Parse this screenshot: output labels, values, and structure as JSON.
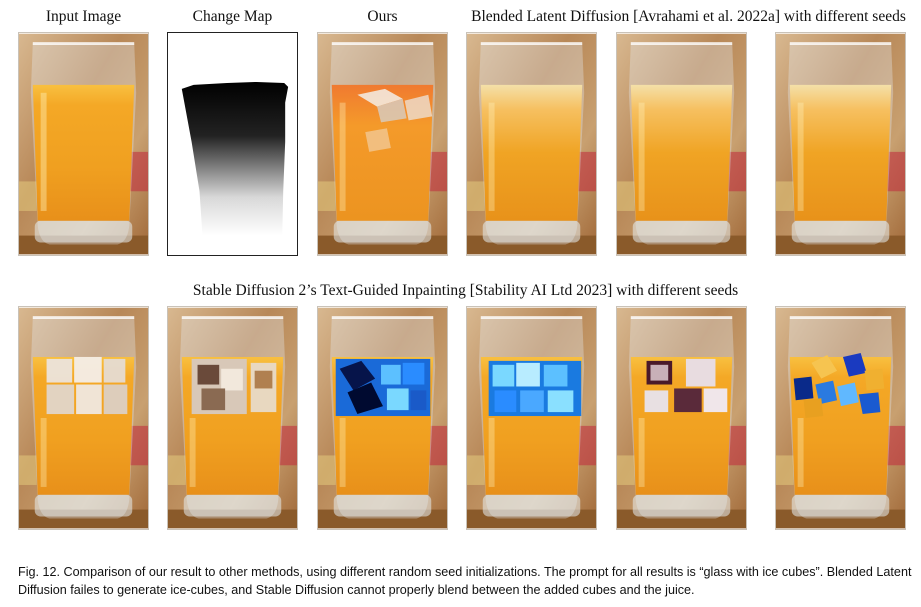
{
  "figure": {
    "row1_headers": {
      "input": "Input Image",
      "change_map": "Change Map",
      "ours": "Ours",
      "blended": "Blended Latent Diffusion [Avrahami et al. 2022a] with different seeds"
    },
    "row2_header": "Stable Diffusion 2’s Text-Guided Inpainting [Stability AI Ltd 2023] with different seeds",
    "caption": "Fig. 12.  Comparison of our result to other methods, using different random seed initializations. The prompt for all results is “glass with ice cubes”. Blended Latent Diffusion failes to generate ice-cubes, and Stable Diffusion cannot properly blend between the added cubes and the juice."
  },
  "colors": {
    "juice": "#f0a020",
    "juice_top": "#f8c040",
    "background_wood": "#b07840",
    "ice_clear": "#f2ece6",
    "ice_blue": "#2a8cff",
    "ice_dark": "#0a1e6e"
  }
}
